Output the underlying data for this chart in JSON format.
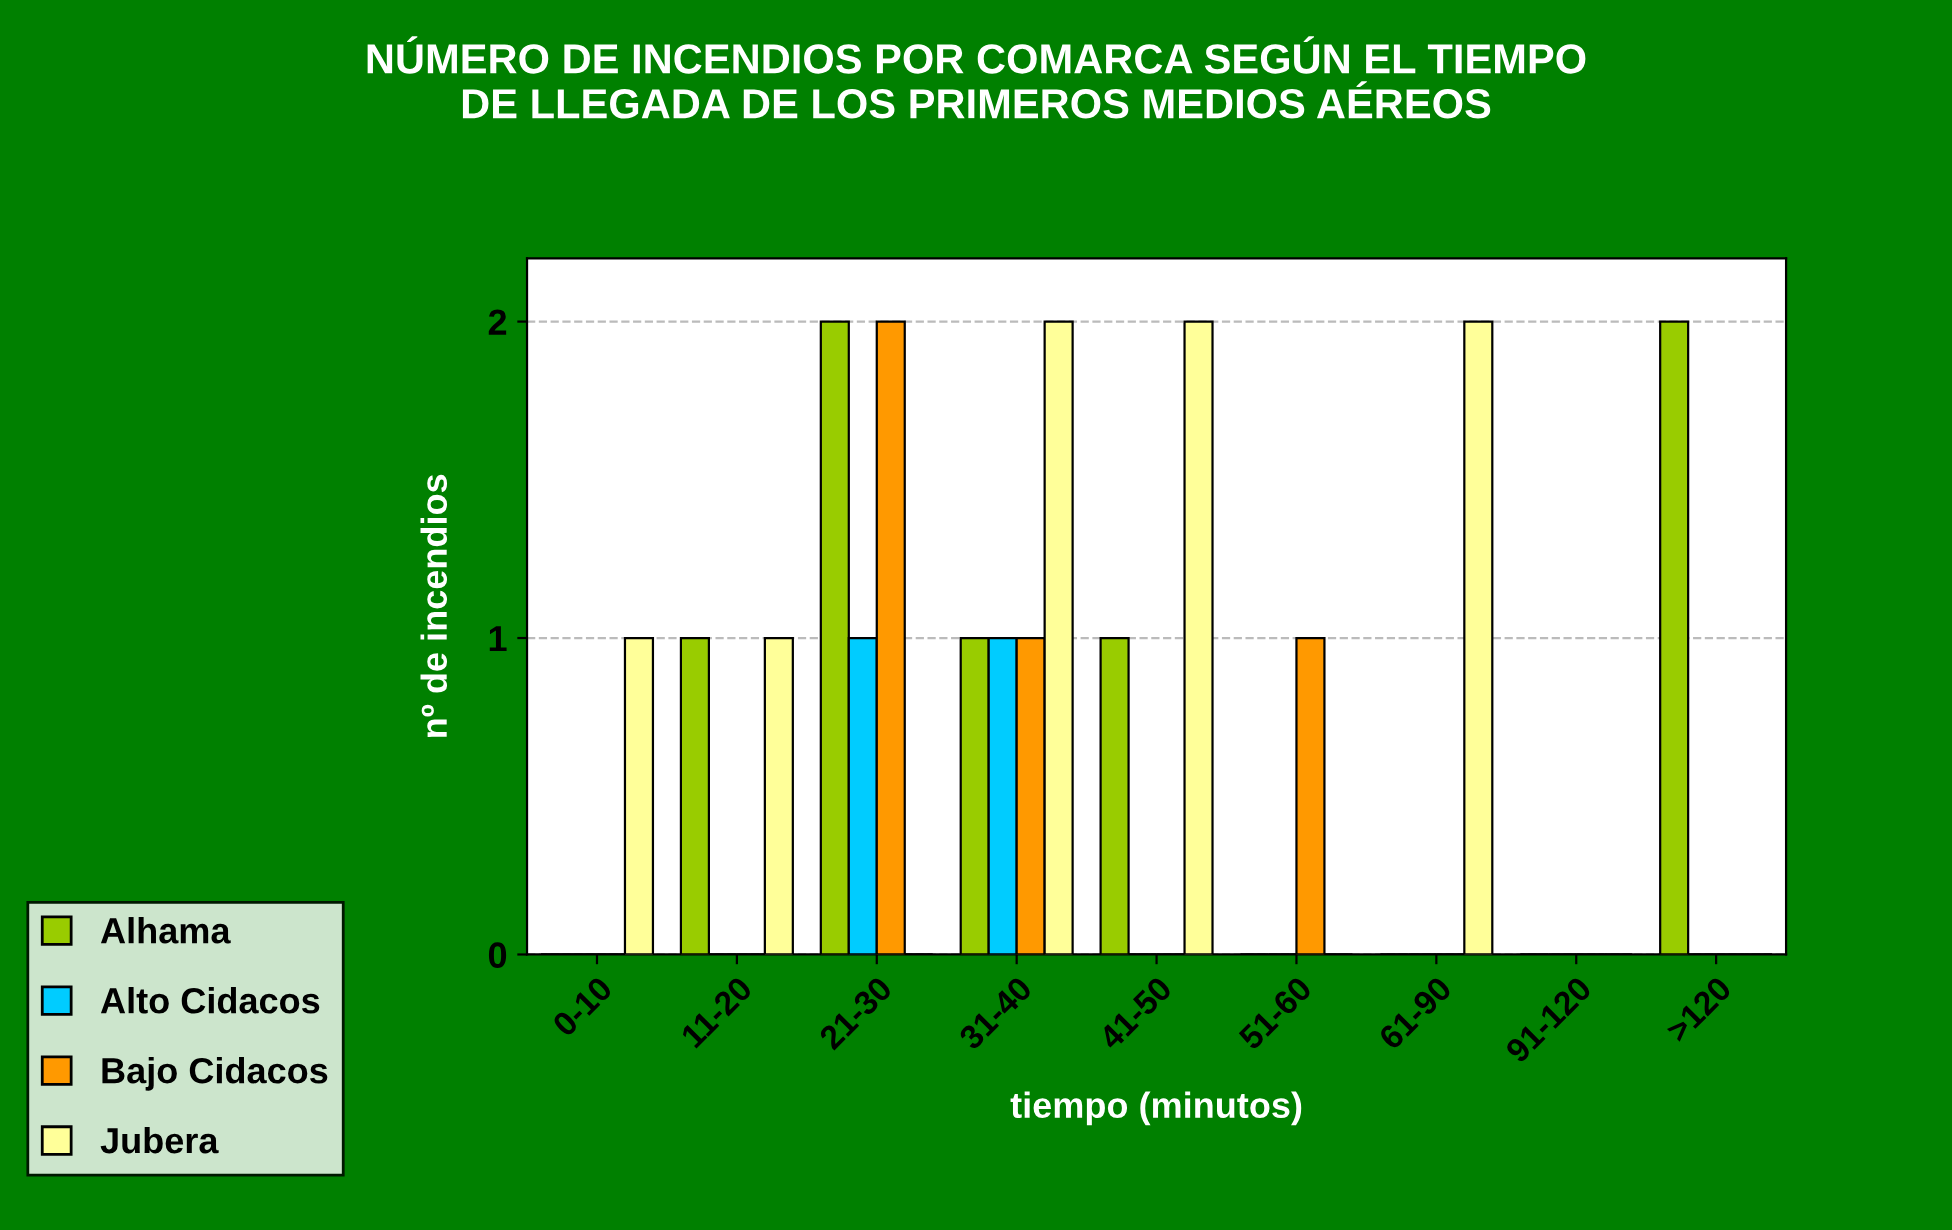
{
  "chart_data": {
    "type": "bar",
    "title": "NÚMERO DE INCENDIOS POR COMARCA SEGÚN EL TIEMPO\nDE LLEGADA DE LOS PRIMEROS MEDIOS AÉREOS",
    "xlabel": "tiempo (minutos)",
    "ylabel": "nº de incendios",
    "categories": [
      "0-10",
      "11-20",
      "21-30",
      "31-40",
      "41-50",
      "51-60",
      "61-90",
      "91-120",
      ">120"
    ],
    "series": [
      {
        "name": "Alhama",
        "color": "#99cc00",
        "values": [
          0,
          1,
          2,
          1,
          1,
          0,
          0,
          0,
          2
        ]
      },
      {
        "name": "Alto Cidacos",
        "color": "#00ccff",
        "values": [
          0,
          0,
          1,
          1,
          0,
          0,
          0,
          0,
          0
        ]
      },
      {
        "name": "Bajo Cidacos",
        "color": "#ff9900",
        "values": [
          0,
          0,
          2,
          1,
          0,
          1,
          0,
          0,
          0
        ]
      },
      {
        "name": "Jubera",
        "color": "#ffff99",
        "values": [
          1,
          1,
          0,
          2,
          2,
          0,
          2,
          0,
          0
        ]
      }
    ],
    "ylim": [
      0,
      2.2
    ],
    "yticks": [
      0,
      1,
      2
    ],
    "grid": "y",
    "legend": "left"
  }
}
